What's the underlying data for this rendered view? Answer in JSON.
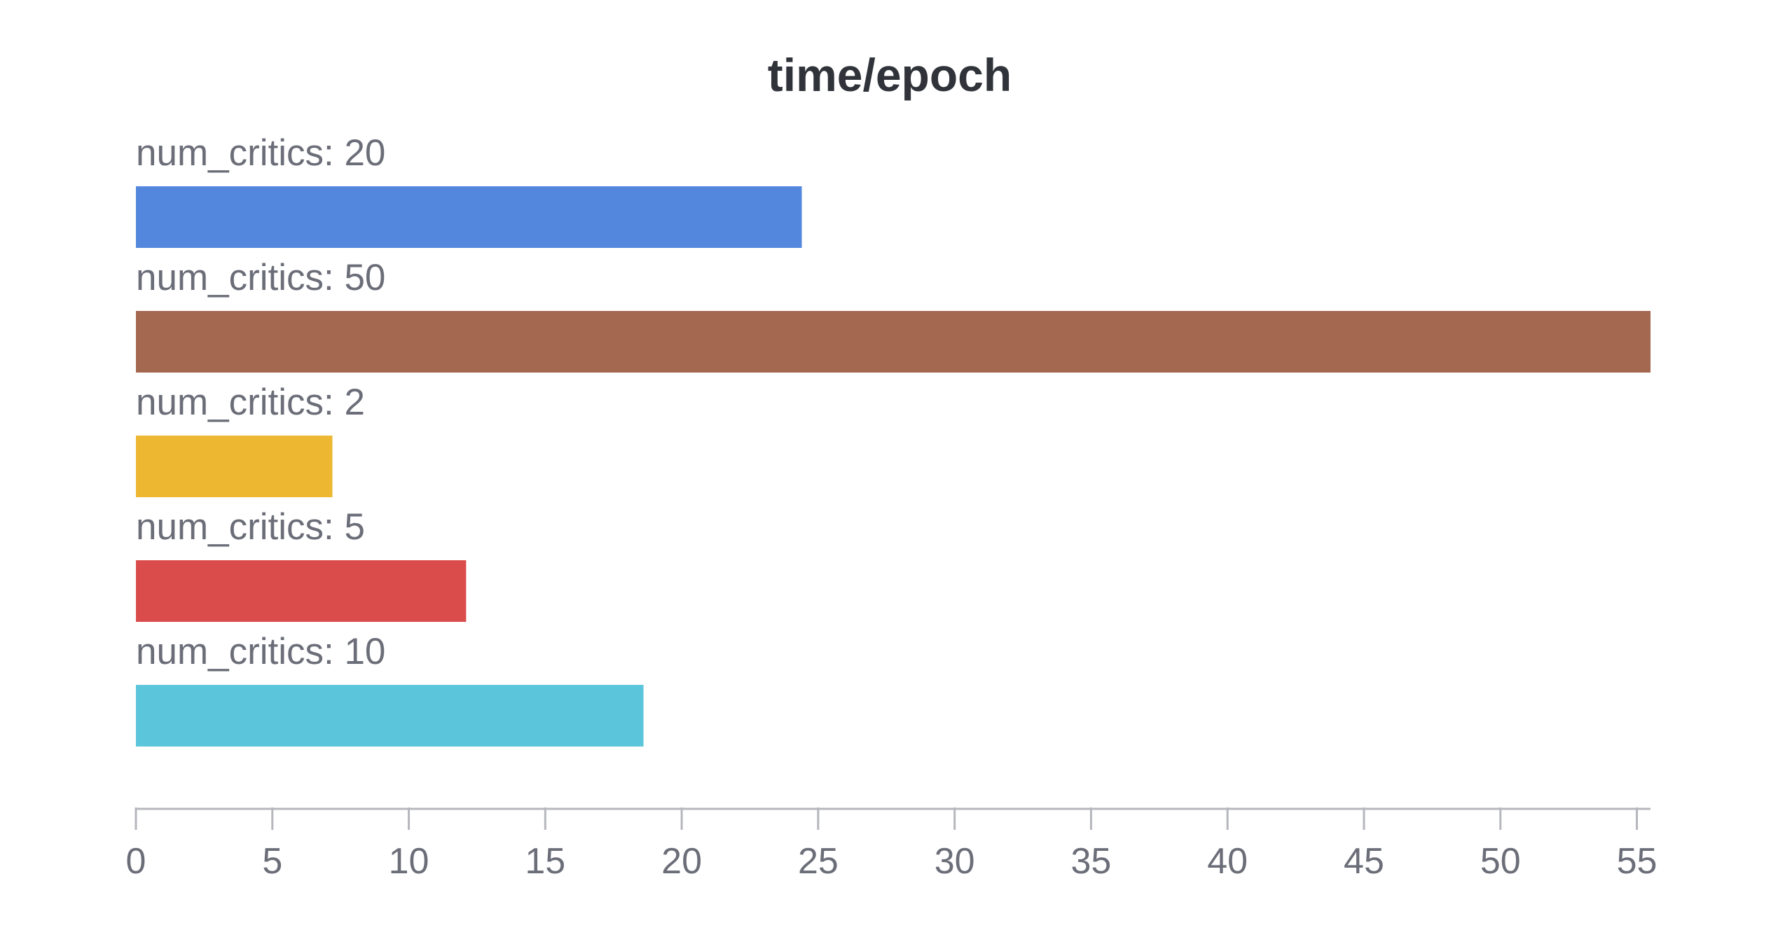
{
  "chart_data": {
    "type": "bar",
    "orientation": "horizontal",
    "title": "time/epoch",
    "xlabel": "",
    "ylabel": "",
    "xlim": [
      0,
      55.5
    ],
    "x_ticks": [
      0,
      5,
      10,
      15,
      20,
      25,
      30,
      35,
      40,
      45,
      50,
      55
    ],
    "grid": false,
    "categories": [
      "num_critics: 20",
      "num_critics: 50",
      "num_critics: 2",
      "num_critics: 5",
      "num_critics: 10"
    ],
    "values": [
      24.4,
      55.5,
      7.2,
      12.1,
      18.6
    ],
    "colors": [
      "#5387dd",
      "#a46750",
      "#edb732",
      "#da4c4c",
      "#5bc5db"
    ]
  }
}
